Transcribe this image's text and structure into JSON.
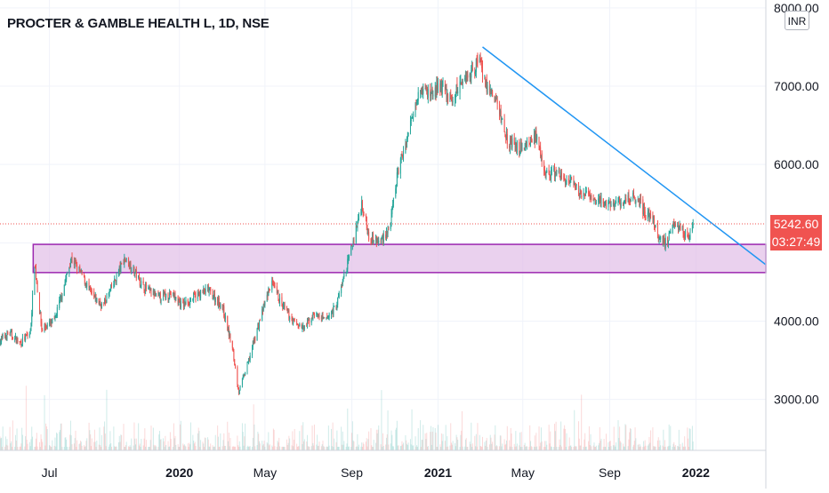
{
  "header": {
    "title": "PROCTER & GAMBLE HEALTH L, 1D, NSE",
    "currency": "INR"
  },
  "price_tag": {
    "price": "5242.60",
    "countdown": "03:27:49"
  },
  "colors": {
    "up": "#26a69a",
    "down": "#ef5350",
    "trendline": "#2196f3",
    "zone_border": "#9c27b0",
    "zone_fill": "#e1bee7"
  },
  "chart_data": {
    "type": "candlestick",
    "title": "PROCTER & GAMBLE HEALTH L, 1D, NSE",
    "y_axis": {
      "ticks": [
        3000,
        4000,
        5000,
        6000,
        7000,
        8000
      ],
      "tick_labels": [
        "3000.00",
        "4000.00",
        "",
        "6000.00",
        "7000.00",
        "8000.00"
      ],
      "range": [
        2350,
        8100
      ],
      "side": "right"
    },
    "x_axis": {
      "tick_labels": [
        {
          "label": "Jul",
          "date": "2019-07-01"
        },
        {
          "label": "2020",
          "date": "2020-01-01"
        },
        {
          "label": "May",
          "date": "2020-05-01"
        },
        {
          "label": "Sep",
          "date": "2020-09-01"
        },
        {
          "label": "2021",
          "date": "2021-01-01"
        },
        {
          "label": "May",
          "date": "2021-05-01"
        },
        {
          "label": "Sep",
          "date": "2021-09-01"
        },
        {
          "label": "2022",
          "date": "2022-01-01"
        }
      ],
      "range": [
        "2019-04-22",
        "2022-04-10"
      ]
    },
    "price_path": [
      [
        "2019-04-22",
        3750
      ],
      [
        "2019-05-05",
        3850
      ],
      [
        "2019-05-20",
        3720
      ],
      [
        "2019-06-04",
        3850
      ],
      [
        "2019-06-10",
        4750
      ],
      [
        "2019-06-20",
        3900
      ],
      [
        "2019-07-08",
        4000
      ],
      [
        "2019-07-20",
        4400
      ],
      [
        "2019-08-01",
        4800
      ],
      [
        "2019-08-15",
        4600
      ],
      [
        "2019-09-01",
        4300
      ],
      [
        "2019-09-15",
        4200
      ],
      [
        "2019-10-01",
        4500
      ],
      [
        "2019-10-15",
        4800
      ],
      [
        "2019-10-25",
        4700
      ],
      [
        "2019-11-10",
        4450
      ],
      [
        "2019-12-01",
        4300
      ],
      [
        "2019-12-20",
        4350
      ],
      [
        "2020-01-05",
        4200
      ],
      [
        "2020-01-20",
        4300
      ],
      [
        "2020-02-10",
        4400
      ],
      [
        "2020-03-01",
        4200
      ],
      [
        "2020-03-15",
        3700
      ],
      [
        "2020-03-25",
        3100
      ],
      [
        "2020-04-05",
        3400
      ],
      [
        "2020-04-20",
        3900
      ],
      [
        "2020-05-10",
        4500
      ],
      [
        "2020-05-25",
        4200
      ],
      [
        "2020-06-10",
        4000
      ],
      [
        "2020-06-25",
        3900
      ],
      [
        "2020-07-10",
        4100
      ],
      [
        "2020-07-25",
        4000
      ],
      [
        "2020-08-10",
        4200
      ],
      [
        "2020-08-25",
        4700
      ],
      [
        "2020-09-05",
        5100
      ],
      [
        "2020-09-15",
        5500
      ],
      [
        "2020-09-25",
        5100
      ],
      [
        "2020-10-10",
        5000
      ],
      [
        "2020-10-25",
        5200
      ],
      [
        "2020-11-05",
        5900
      ],
      [
        "2020-11-20",
        6400
      ],
      [
        "2020-12-05",
        7000
      ],
      [
        "2020-12-20",
        6900
      ],
      [
        "2021-01-05",
        7000
      ],
      [
        "2021-01-20",
        6800
      ],
      [
        "2021-02-05",
        7100
      ],
      [
        "2021-02-20",
        7200
      ],
      [
        "2021-03-01",
        7400
      ],
      [
        "2021-03-10",
        7000
      ],
      [
        "2021-03-25",
        6800
      ],
      [
        "2021-04-10",
        6300
      ],
      [
        "2021-04-25",
        6200
      ],
      [
        "2021-05-10",
        6300
      ],
      [
        "2021-05-20",
        6350
      ],
      [
        "2021-05-28",
        6000
      ],
      [
        "2021-06-05",
        5850
      ],
      [
        "2021-06-15",
        5900
      ],
      [
        "2021-07-01",
        5800
      ],
      [
        "2021-07-20",
        5650
      ],
      [
        "2021-08-10",
        5550
      ],
      [
        "2021-08-25",
        5500
      ],
      [
        "2021-09-10",
        5500
      ],
      [
        "2021-09-25",
        5550
      ],
      [
        "2021-10-10",
        5600
      ],
      [
        "2021-10-20",
        5400
      ],
      [
        "2021-11-01",
        5300
      ],
      [
        "2021-11-10",
        5050
      ],
      [
        "2021-11-20",
        5000
      ],
      [
        "2021-12-01",
        5300
      ],
      [
        "2021-12-10",
        5200
      ],
      [
        "2021-12-20",
        5050
      ],
      [
        "2021-12-28",
        5243
      ]
    ],
    "last_price": 5242.6,
    "zone": {
      "from": "2019-06-08",
      "to": "2022-04-10",
      "low": 4620,
      "high": 4980
    },
    "trendline": {
      "from": [
        "2021-03-05",
        7500
      ],
      "to": [
        "2022-04-10",
        4720
      ]
    },
    "price_line": 5242.6
  }
}
